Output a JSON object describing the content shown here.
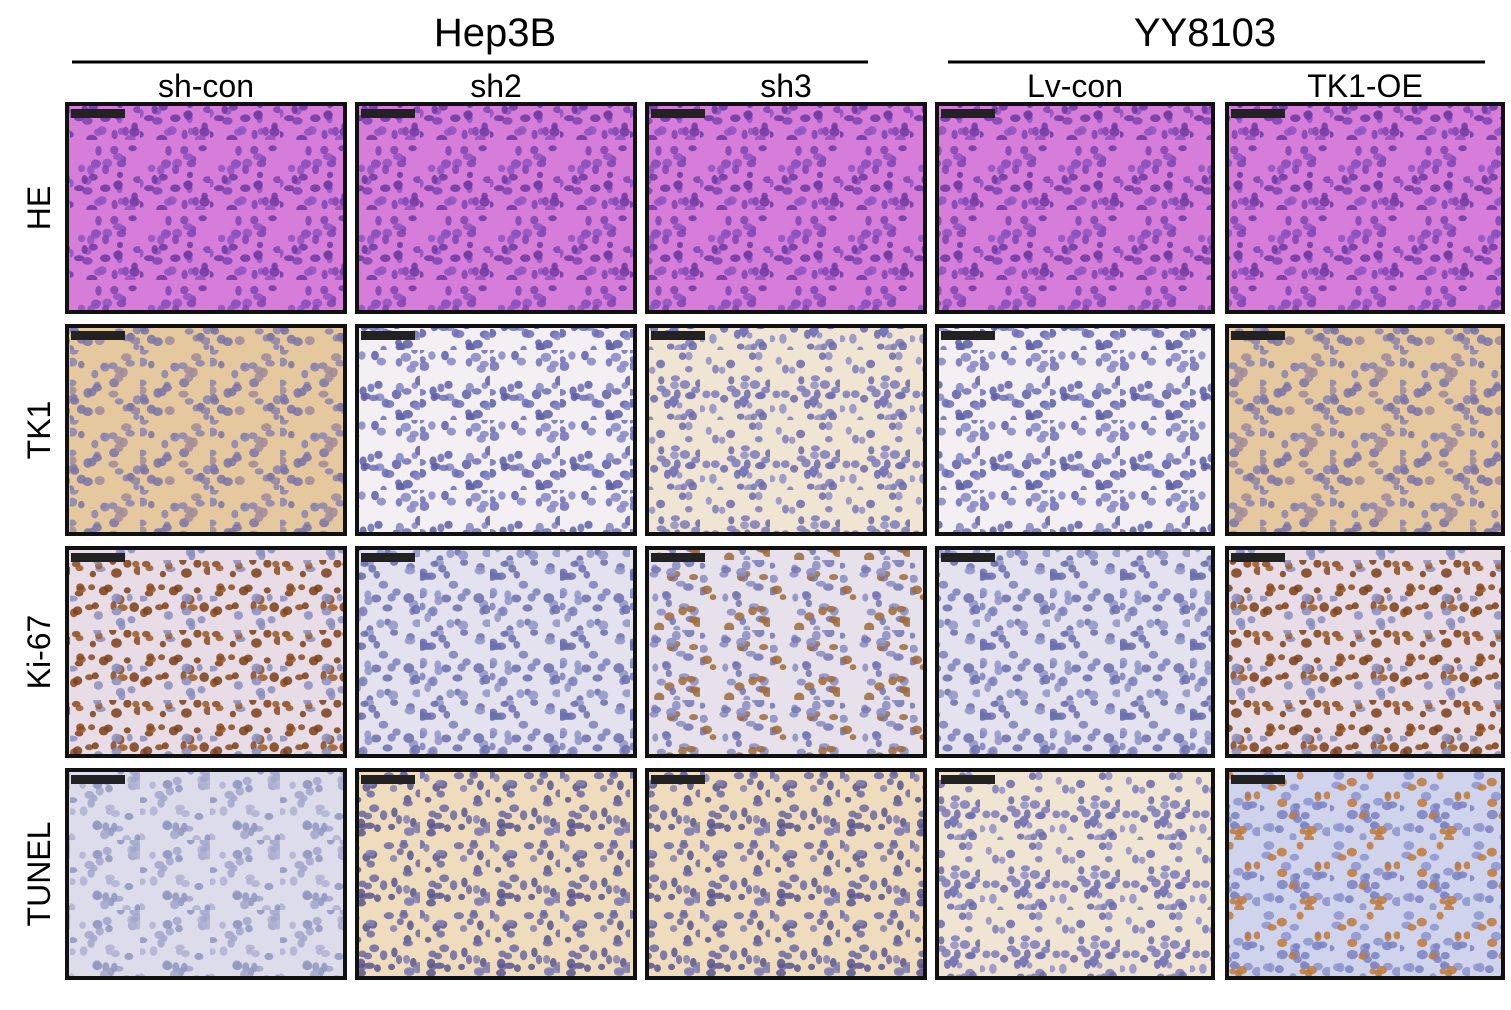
{
  "header": {
    "groups": [
      {
        "title": "Hep3B",
        "columns": [
          "sh-con",
          "sh2",
          "sh3"
        ]
      },
      {
        "title": "YY8103",
        "columns": [
          "Lv-con",
          "TK1-OE"
        ]
      }
    ]
  },
  "rows": [
    "HE",
    "TK1",
    "Ki-67",
    "TUNEL"
  ]
}
